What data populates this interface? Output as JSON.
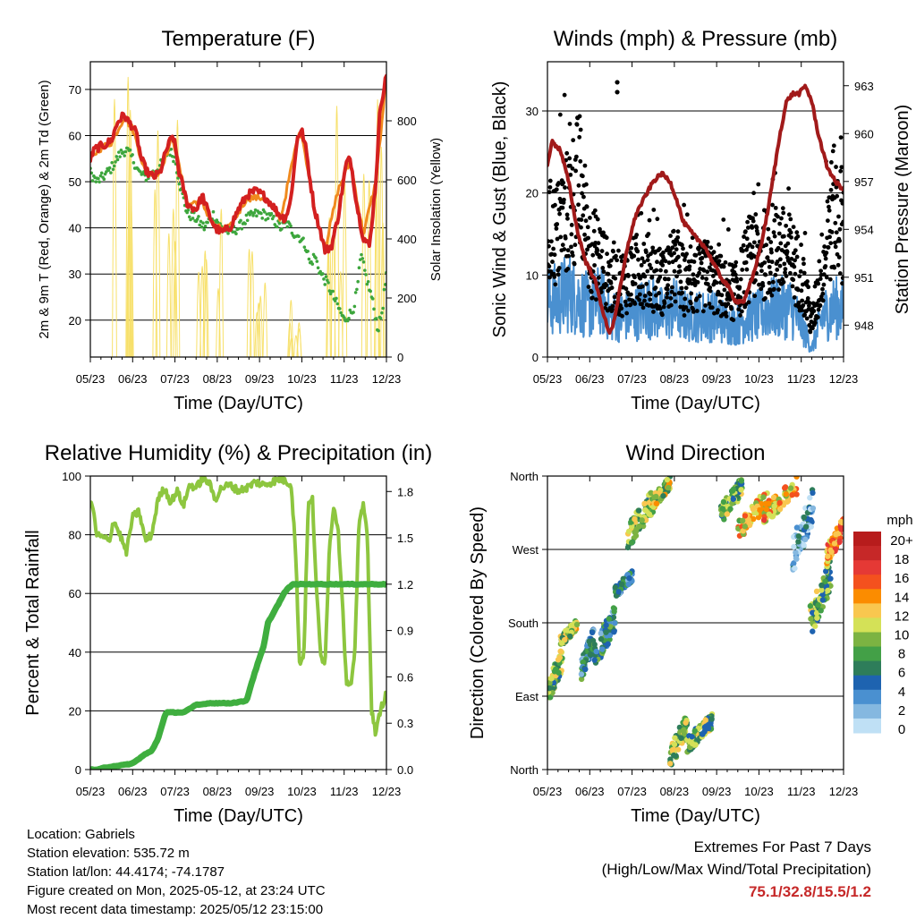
{
  "footer": {
    "location": "Location: Gabriels",
    "elevation": "Station elevation: 535.72 m",
    "latlon": "Station lat/lon: 44.4174; -74.1787",
    "created": "Figure created on Mon, 2025-05-12, at 23:24 UTC",
    "latest": "Most recent data timestamp: 2025/05/12 23:15:00"
  },
  "extremes": {
    "title": "Extremes For Past 7 Days",
    "subtitle": "(High/Low/Max Wind/Total Precipitation)",
    "values": "75.1/32.8/15.5/1.2"
  },
  "chart_data": [
    {
      "type": "line",
      "title": "Temperature (F)",
      "xlabel": "Time (Day/UTC)",
      "ylabel": "2m & 9m T (Red, Orange) & 2m Td (Green)",
      "y2label": "Solar Insolation (Yellow)",
      "categories": [
        "05/23",
        "06/23",
        "07/23",
        "08/23",
        "09/23",
        "10/23",
        "11/23",
        "12/23"
      ],
      "xlim": [
        0,
        7
      ],
      "ylim": [
        12,
        76
      ],
      "yticks": [
        20,
        30,
        40,
        50,
        60,
        70
      ],
      "y2lim": [
        0,
        1000
      ],
      "y2ticks": [
        0,
        200,
        400,
        600,
        800
      ],
      "grid": true,
      "series": [
        {
          "color": "#d32020",
          "axis": "left",
          "x": [
            0,
            0.1,
            0.2,
            0.35,
            0.5,
            0.65,
            0.8,
            0.9,
            1.0,
            1.1,
            1.2,
            1.35,
            1.5,
            1.65,
            1.8,
            1.95,
            2.0,
            2.1,
            2.3,
            2.5,
            2.65,
            2.8,
            2.95,
            3.1,
            3.3,
            3.5,
            3.7,
            3.9,
            4.1,
            4.3,
            4.45,
            4.6,
            4.72,
            4.82,
            4.9,
            5.0,
            5.1,
            5.2,
            5.3,
            5.42,
            5.55,
            5.7,
            5.85,
            5.95,
            6.05,
            6.15,
            6.3,
            6.45,
            6.6,
            6.75,
            6.85,
            7.0
          ],
          "y": [
            55,
            57,
            57.5,
            58,
            59,
            63,
            64.5,
            63,
            62,
            60,
            55,
            52,
            51,
            52,
            57,
            60,
            58,
            52,
            45,
            44,
            47,
            43,
            40,
            39,
            40,
            44,
            47,
            48,
            47,
            45,
            43,
            42,
            45,
            53,
            60,
            61,
            57,
            50,
            44,
            40,
            35,
            36,
            42,
            48,
            54,
            55,
            45,
            38,
            36,
            50,
            66,
            73
          ]
        },
        {
          "color": "#f08a1e",
          "axis": "left",
          "x": [
            0,
            0.2,
            0.5,
            0.8,
            1.0,
            1.3,
            1.6,
            1.95,
            2.3,
            2.6,
            2.95,
            3.3,
            3.7,
            4.1,
            4.5,
            4.9,
            5.0,
            5.3,
            5.55,
            5.85,
            6.15,
            6.45,
            6.75,
            7.0
          ],
          "y": [
            55,
            57,
            58.5,
            64,
            61.5,
            52,
            51.5,
            59.5,
            45,
            46,
            40,
            40,
            46.5,
            46.5,
            42,
            59.5,
            60.5,
            44,
            35.5,
            48,
            54.5,
            38.5,
            50,
            72.5
          ]
        },
        {
          "color": "#3da63d",
          "axis": "left",
          "x": [
            0,
            0.15,
            0.3,
            0.5,
            0.7,
            0.85,
            1.0,
            1.15,
            1.3,
            1.5,
            1.7,
            1.85,
            2.0,
            2.15,
            2.3,
            2.5,
            2.7,
            2.9,
            3.1,
            3.3,
            3.5,
            3.7,
            3.9,
            4.1,
            4.3,
            4.5,
            4.65,
            4.8,
            4.95,
            5.1,
            5.2,
            5.3,
            5.45,
            5.6,
            5.75,
            5.9,
            6.0,
            6.1,
            6.2,
            6.3,
            6.4,
            6.5,
            6.65,
            6.8,
            6.9,
            7.0
          ],
          "y": [
            52,
            50,
            51,
            53,
            56,
            57,
            55,
            52,
            51,
            52,
            54,
            57,
            55,
            48,
            43,
            42,
            40,
            43,
            40,
            39,
            40,
            42,
            43,
            43,
            42,
            40,
            41,
            39,
            38,
            36,
            32,
            34,
            30,
            28,
            25,
            22,
            20,
            21,
            22,
            26,
            34,
            30,
            25,
            18,
            22,
            30
          ]
        },
        {
          "color": "#f7e06a",
          "axis": "right",
          "kind": "daily-spikes",
          "x_peaks": [
            0.8,
            1.8,
            2.8,
            3.8,
            4.8,
            5.8,
            6.8
          ],
          "peaks": [
            950,
            900,
            550,
            400,
            200,
            950,
            900
          ]
        }
      ]
    },
    {
      "type": "scatter",
      "title": "Winds (mph) & Pressure (mb)",
      "xlabel": "Time (Day/UTC)",
      "ylabel": "Sonic Wind & Gust (Blue, Black)",
      "y2label": "Station Pressure (Maroon)",
      "categories": [
        "05/23",
        "06/23",
        "07/23",
        "08/23",
        "09/23",
        "10/23",
        "11/23",
        "12/23"
      ],
      "xlim": [
        0,
        7
      ],
      "ylim": [
        0,
        36
      ],
      "yticks": [
        0,
        10,
        20,
        30
      ],
      "y2lim": [
        946,
        964.5
      ],
      "y2ticks": [
        948,
        951,
        954,
        957,
        960,
        963
      ],
      "grid": true,
      "series": [
        {
          "color": "#4a90d0",
          "kind": "wind",
          "axis": "left",
          "x": [
            0,
            0.25,
            0.5,
            0.75,
            1.0,
            1.25,
            1.5,
            1.75,
            2.0,
            2.25,
            2.5,
            2.75,
            3.0,
            3.25,
            3.5,
            3.75,
            4.0,
            4.25,
            4.5,
            4.75,
            5.0,
            5.25,
            5.5,
            5.75,
            6.0,
            6.25,
            6.5,
            6.75,
            7.0
          ],
          "y": [
            7,
            7,
            8,
            7,
            6,
            7,
            5,
            5,
            5,
            6,
            6,
            5,
            6,
            5,
            5,
            5,
            5,
            4,
            4,
            5,
            5,
            6,
            6,
            6,
            4,
            1,
            5,
            6,
            6
          ]
        },
        {
          "color": "#000000",
          "kind": "gust",
          "axis": "left",
          "x": [
            0,
            0.25,
            0.5,
            0.75,
            1.0,
            1.25,
            1.5,
            1.75,
            2.0,
            2.25,
            2.5,
            2.75,
            3.0,
            3.25,
            3.5,
            3.75,
            4.0,
            4.25,
            4.5,
            4.75,
            5.0,
            5.25,
            5.5,
            5.75,
            6.0,
            6.25,
            6.5,
            6.75,
            7.0
          ],
          "y": [
            15,
            15,
            18,
            21,
            13,
            12,
            9,
            9,
            10,
            11,
            10,
            9,
            11,
            9,
            9,
            10,
            9,
            8,
            8,
            12,
            12,
            13,
            13,
            12,
            10,
            4,
            11,
            18,
            16
          ]
        },
        {
          "color": "#a11a1a",
          "kind": "pressure",
          "axis": "right",
          "x": [
            0,
            0.1,
            0.3,
            0.5,
            0.7,
            0.9,
            1.1,
            1.3,
            1.45,
            1.55,
            1.7,
            1.9,
            2.1,
            2.3,
            2.5,
            2.7,
            2.9,
            3.1,
            3.2,
            3.35,
            3.5,
            3.7,
            3.9,
            4.1,
            4.25,
            4.45,
            4.65,
            4.85,
            5.05,
            5.2,
            5.35,
            5.5,
            5.65,
            5.8,
            5.95,
            6.1,
            6.25,
            6.4,
            6.6,
            6.8,
            7.0
          ],
          "y": [
            958,
            959.5,
            959,
            957,
            954,
            952,
            951,
            949,
            947.5,
            948,
            950,
            953,
            955,
            956,
            957,
            957.5,
            957,
            955.5,
            954.5,
            954,
            953.5,
            953,
            952,
            951,
            950.5,
            949.5,
            949.5,
            951,
            953,
            955,
            957.5,
            960,
            962,
            962.5,
            962.5,
            963,
            962,
            960,
            958,
            957,
            956.5
          ]
        }
      ],
      "outliers": [
        {
          "x": 1.65,
          "y": 33.5
        },
        {
          "x": 1.65,
          "y": 32.3
        }
      ]
    },
    {
      "type": "line",
      "title": "Relative Humidity (%) & Precipitation (in)",
      "xlabel": "Time (Day/UTC)",
      "ylabel": "Percent & Total Rainfall",
      "categories": [
        "05/23",
        "06/23",
        "07/23",
        "08/23",
        "09/23",
        "10/23",
        "11/23",
        "12/23"
      ],
      "xlim": [
        0,
        7
      ],
      "ylim": [
        0,
        100
      ],
      "yticks": [
        0,
        20,
        40,
        60,
        80,
        100
      ],
      "y2lim": [
        0,
        1.9
      ],
      "y2ticks": [
        "0.0",
        "0.3",
        "0.6",
        "0.9",
        "1.2",
        "1.5",
        "1.8"
      ],
      "grid": true,
      "series": [
        {
          "color": "#8dc63f",
          "axis": "left",
          "name": "relative humidity",
          "x": [
            0,
            0.05,
            0.15,
            0.3,
            0.45,
            0.55,
            0.7,
            0.85,
            1.0,
            1.15,
            1.3,
            1.45,
            1.6,
            1.75,
            1.9,
            2.05,
            2.2,
            2.35,
            2.5,
            2.65,
            2.8,
            2.95,
            3.1,
            3.3,
            3.5,
            3.7,
            3.9,
            4.1,
            4.3,
            4.5,
            4.65,
            4.75,
            4.85,
            4.95,
            5.05,
            5.15,
            5.25,
            5.35,
            5.45,
            5.55,
            5.65,
            5.75,
            5.85,
            5.95,
            6.05,
            6.15,
            6.25,
            6.35,
            6.45,
            6.55,
            6.65,
            6.75,
            6.85,
            7.0
          ],
          "y": [
            91,
            90,
            80,
            79,
            78,
            85,
            80,
            74,
            86,
            88,
            78,
            80,
            92,
            96,
            91,
            95,
            90,
            97,
            96,
            99,
            98,
            92,
            96,
            97,
            95,
            96,
            98,
            97,
            98,
            99,
            98,
            97,
            75,
            35,
            40,
            90,
            92,
            60,
            38,
            37,
            75,
            90,
            83,
            60,
            30,
            28,
            38,
            85,
            90,
            80,
            20,
            12,
            20,
            26
          ]
        },
        {
          "color": "#3fae3f",
          "axis": "right",
          "name": "total precipitation",
          "x": [
            0,
            0.2,
            0.3,
            0.5,
            0.8,
            1.0,
            1.1,
            1.3,
            1.45,
            1.6,
            1.75,
            1.8,
            2.0,
            2.2,
            2.4,
            2.5,
            2.6,
            2.8,
            3.0,
            3.3,
            3.6,
            3.7,
            3.75,
            3.8,
            3.95,
            4.1,
            4.2,
            4.4,
            4.5,
            4.6,
            4.7,
            4.8,
            5.0,
            5.5,
            6.0,
            6.5,
            7.0
          ],
          "y": [
            0,
            0,
            0.01,
            0.02,
            0.03,
            0.04,
            0.06,
            0.1,
            0.12,
            0.2,
            0.34,
            0.37,
            0.37,
            0.37,
            0.4,
            0.42,
            0.42,
            0.43,
            0.43,
            0.43,
            0.44,
            0.45,
            0.5,
            0.55,
            0.68,
            0.8,
            0.95,
            1.05,
            1.1,
            1.15,
            1.18,
            1.2,
            1.2,
            1.2,
            1.2,
            1.2,
            1.2
          ]
        }
      ]
    },
    {
      "type": "scatter",
      "title": "Wind Direction",
      "xlabel": "Time (Day/UTC)",
      "ylabel": "Direction (Colored By Speed)",
      "categories": [
        "05/23",
        "06/23",
        "07/23",
        "08/23",
        "09/23",
        "10/23",
        "11/23",
        "12/23"
      ],
      "xlim": [
        0,
        7
      ],
      "ylim": [
        0,
        360
      ],
      "ytick_values": [
        0,
        90,
        180,
        270,
        360
      ],
      "ytick_labels": [
        "North",
        "East",
        "South",
        "West",
        "North"
      ],
      "grid": true,
      "colorbar": {
        "title": "mph",
        "labels": [
          "20+",
          "18",
          "16",
          "14",
          "12",
          "10",
          "8",
          "6",
          "4",
          "2",
          "0"
        ],
        "colors": [
          "#b71c1c",
          "#c62828",
          "#e53935",
          "#f4511e",
          "#fb8c00",
          "#f9c74f",
          "#d4e157",
          "#7cb342",
          "#43a047",
          "#2e7d5a",
          "#1e63b0",
          "#4a90d0",
          "#85b8e0",
          "#bfe0f5"
        ]
      },
      "clusters": [
        {
          "x0": 0.0,
          "x1": 0.35,
          "d0": 80,
          "d1": 150,
          "speed": 9
        },
        {
          "x0": 0.3,
          "x1": 0.7,
          "d0": 150,
          "d1": 185,
          "speed": 10
        },
        {
          "x0": 0.8,
          "x1": 1.1,
          "d0": 110,
          "d1": 175,
          "speed": 5
        },
        {
          "x0": 1.1,
          "x1": 1.6,
          "d0": 120,
          "d1": 205,
          "speed": 6
        },
        {
          "x0": 1.6,
          "x1": 2.0,
          "d0": 210,
          "d1": 245,
          "speed": 5
        },
        {
          "x0": 1.9,
          "x1": 2.5,
          "d0": 270,
          "d1": 345,
          "speed": 9
        },
        {
          "x0": 2.5,
          "x1": 2.9,
          "d0": 320,
          "d1": 360,
          "speed": 10
        },
        {
          "x0": 2.9,
          "x1": 3.3,
          "d0": 0,
          "d1": 70,
          "speed": 9
        },
        {
          "x0": 3.3,
          "x1": 3.9,
          "d0": 20,
          "d1": 70,
          "speed": 8
        },
        {
          "x0": 4.1,
          "x1": 4.6,
          "d0": 300,
          "d1": 360,
          "speed": 8
        },
        {
          "x0": 4.5,
          "x1": 5.2,
          "d0": 280,
          "d1": 345,
          "speed": 12
        },
        {
          "x0": 5.1,
          "x1": 5.9,
          "d0": 300,
          "d1": 360,
          "speed": 13
        },
        {
          "x0": 5.8,
          "x1": 6.3,
          "d0": 240,
          "d1": 350,
          "speed": 3
        },
        {
          "x0": 6.2,
          "x1": 6.7,
          "d0": 160,
          "d1": 260,
          "speed": 8
        },
        {
          "x0": 6.6,
          "x1": 7.0,
          "d0": 250,
          "d1": 310,
          "speed": 14
        }
      ]
    }
  ]
}
